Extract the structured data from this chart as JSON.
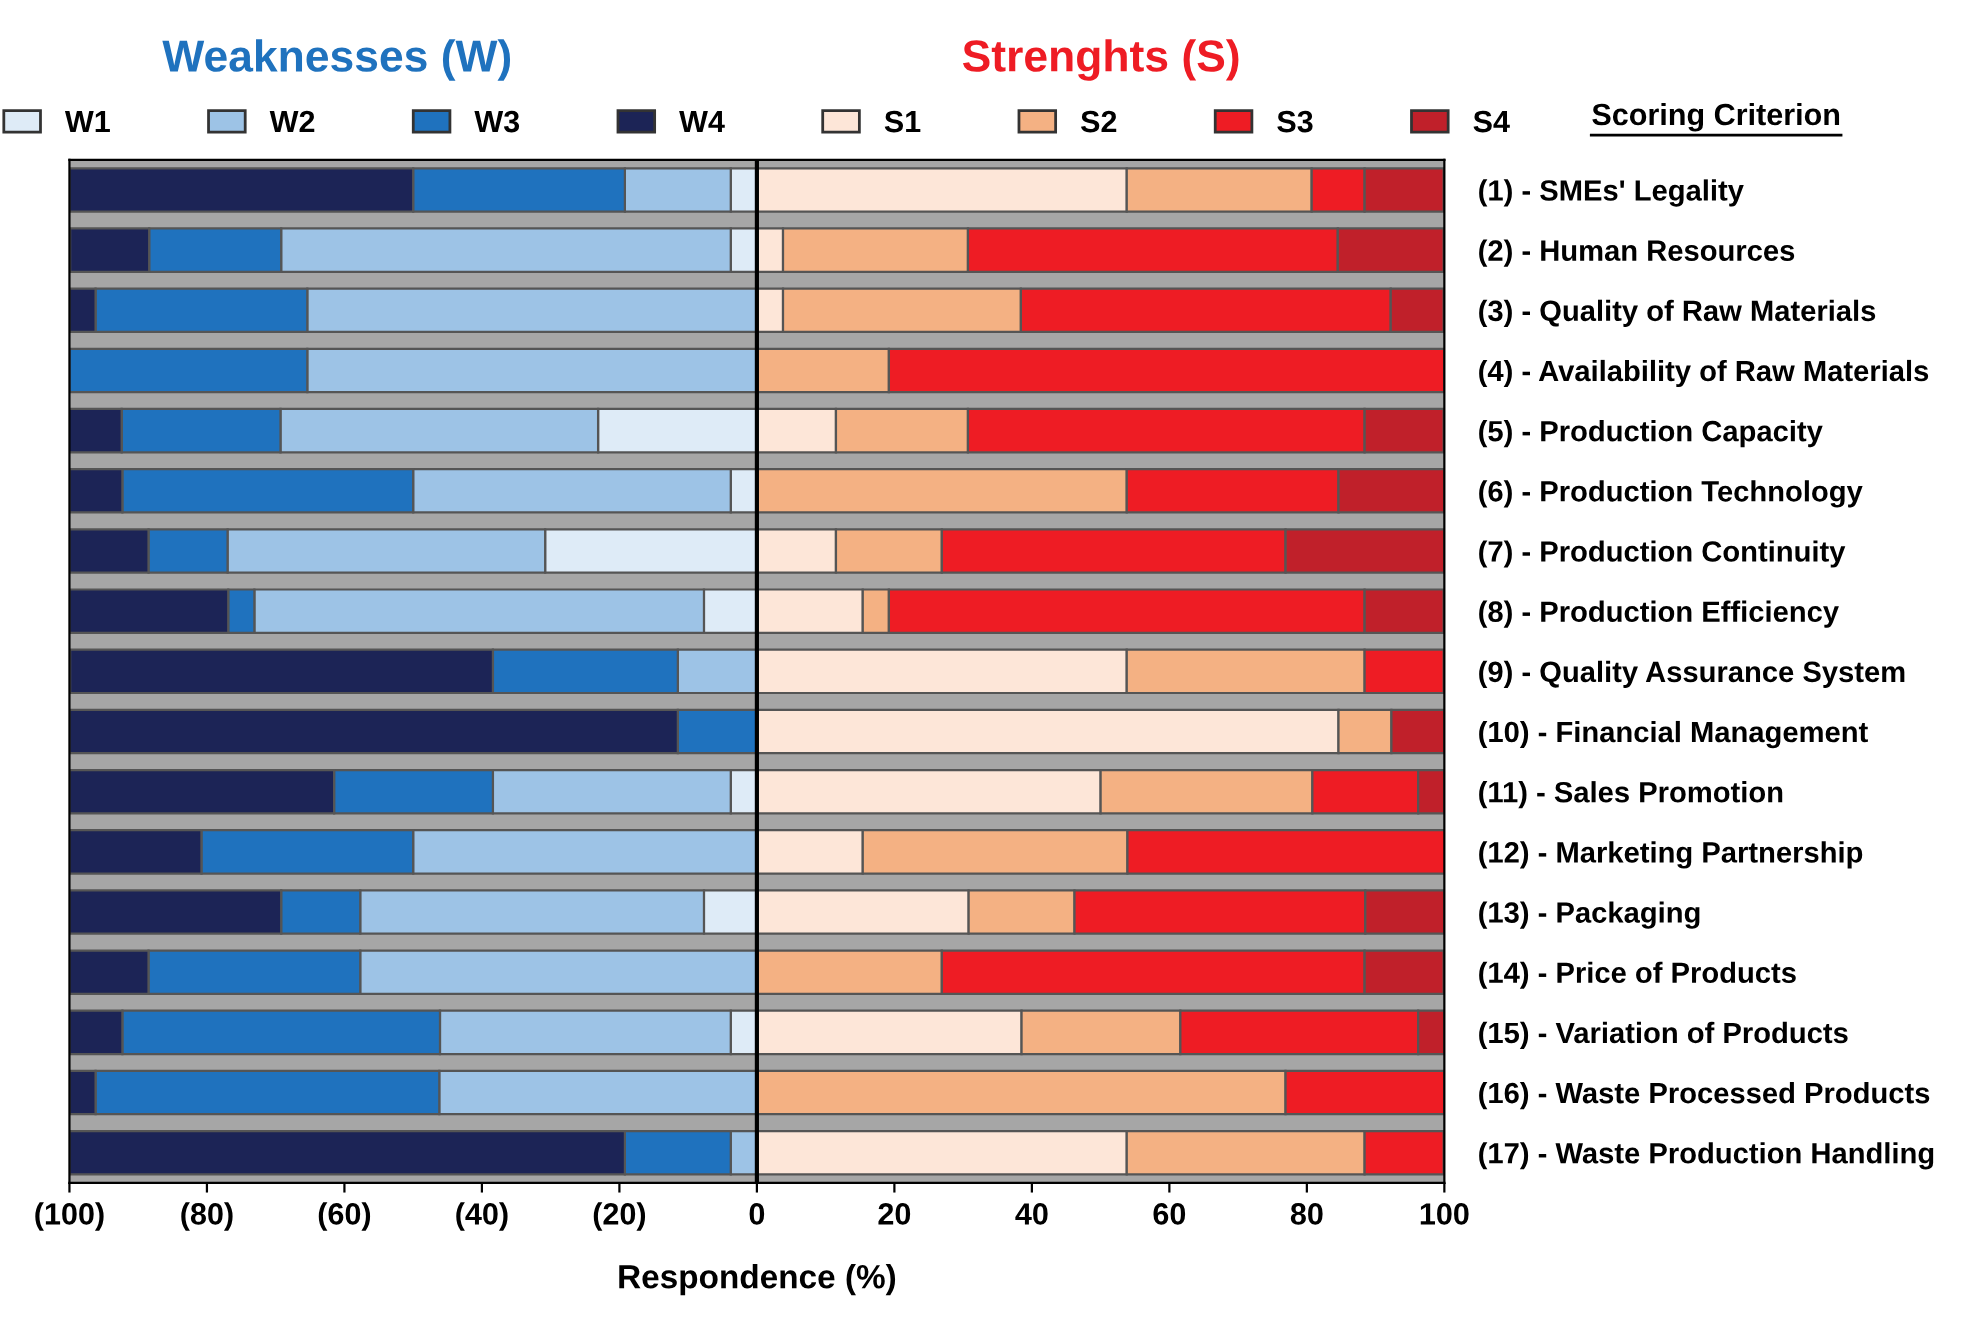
{
  "chart_data": {
    "type": "bar",
    "orientation": "horizontal",
    "stacked": true,
    "categories": [
      "(1) - SMEs' Legality",
      "(2) - Human Resources",
      "(3) - Quality of Raw Materials",
      "(4) - Availability of Raw Materials",
      "(5) - Production Capacity",
      "(6) - Production Technology",
      "(7) - Production Continuity",
      "(8) - Production Efficiency",
      "(9) - Quality Assurance System",
      "(10) - Financial Management",
      "(11) - Sales Promotion",
      "(12) - Marketing Partnership",
      "(13) - Packaging",
      "(14) - Price of Products",
      "(15) - Variation of Products",
      "(16) - Waste Processed Products",
      "(17) - Waste Production Handling"
    ],
    "series": [
      {
        "name": "W1",
        "color": "#deebf7",
        "values": [
          -3.8,
          -3.8,
          null,
          null,
          -23.1,
          -3.8,
          -30.8,
          -7.7,
          null,
          null,
          -3.8,
          null,
          -7.7,
          null,
          -3.8,
          null,
          null
        ]
      },
      {
        "name": "W2",
        "color": "#9dc3e6",
        "values": [
          -15.4,
          -65.4,
          -65.4,
          -65.4,
          -46.2,
          -46.2,
          -46.2,
          -65.4,
          -11.5,
          null,
          -34.6,
          -50,
          -50,
          -57.7,
          -42.3,
          -46.2,
          -3.8
        ]
      },
      {
        "name": "W3",
        "color": "#1f72be",
        "values": [
          -30.8,
          -19.2,
          -30.8,
          -34.6,
          -23.1,
          -42.3,
          -11.5,
          -3.8,
          -26.9,
          -11.5,
          -23.1,
          -30.8,
          -11.5,
          -30.8,
          -46.2,
          -50,
          -15.4
        ]
      },
      {
        "name": "W4",
        "color": "#1c2456",
        "values": [
          -50,
          -11.5,
          -3.8,
          null,
          -7.7,
          -7.7,
          -11.5,
          -23.1,
          -61.5,
          -88.5,
          -38.5,
          -19.2,
          -30.8,
          -11.5,
          -7.7,
          -3.8,
          -80.8
        ]
      },
      {
        "name": "S1",
        "color": "#fde6d8",
        "values": [
          53.8,
          3.8,
          3.8,
          null,
          11.5,
          null,
          11.5,
          15.4,
          53.8,
          84.6,
          50,
          15.4,
          30.8,
          null,
          38.5,
          null,
          53.8
        ]
      },
      {
        "name": "S2",
        "color": "#f4b183",
        "values": [
          26.9,
          26.9,
          34.6,
          19.2,
          19.2,
          53.8,
          15.4,
          3.8,
          34.6,
          7.7,
          30.8,
          38.5,
          15.4,
          26.9,
          23.1,
          76.9,
          34.6
        ]
      },
      {
        "name": "S3",
        "color": "#ee1c24",
        "values": [
          7.7,
          53.8,
          53.8,
          80.8,
          57.7,
          30.8,
          50,
          69.2,
          11.5,
          null,
          15.4,
          46.2,
          42.3,
          61.5,
          34.6,
          23.1,
          11.5
        ]
      },
      {
        "name": "S4",
        "color": "#c0202a",
        "values": [
          11.5,
          15.4,
          7.7,
          null,
          11.5,
          15.4,
          23.1,
          11.5,
          null,
          7.7,
          3.8,
          null,
          11.5,
          11.5,
          3.8,
          null,
          null
        ]
      }
    ],
    "xlim": [
      -100,
      100
    ],
    "xticks": [
      {
        "value": -100,
        "label": "(100)"
      },
      {
        "value": -80,
        "label": "(80)"
      },
      {
        "value": -60,
        "label": "(60)"
      },
      {
        "value": -40,
        "label": "(40)"
      },
      {
        "value": -20,
        "label": "(20)"
      },
      0,
      20,
      40,
      60,
      80,
      100
    ],
    "xlabel": "Respondence (%)",
    "ref_lines": [
      {
        "axis": "x",
        "value": 0,
        "color": "#000000"
      }
    ],
    "annotations": [
      "Weaknesses (W)",
      "Strenghts (S)",
      "Scoring Criterion"
    ],
    "legend": "top",
    "grid": false
  }
}
